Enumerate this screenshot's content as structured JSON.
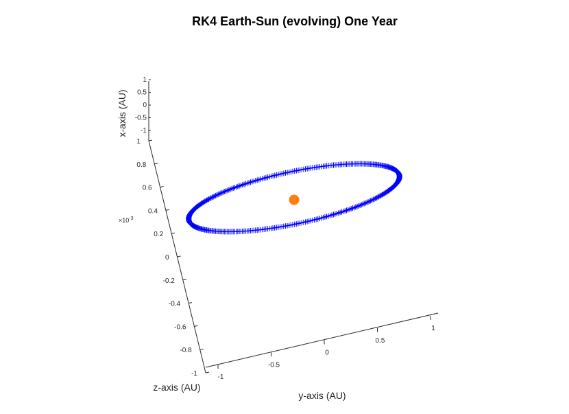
{
  "chart_data": {
    "type": "scatter",
    "title": "RK4 Earth-Sun (evolving) One Year",
    "xlabel": "y-axis (AU)",
    "ylabel": "z-axis (AU)",
    "zlabel": "x-axis (AU)",
    "z_exponent_label": "×10",
    "z_exponent_power": "-3",
    "y_ticks": [
      "-1",
      "-0.5",
      "0",
      "0.5",
      "1"
    ],
    "z_ticks": [
      "-1",
      "-0.8",
      "-0.6",
      "-0.4",
      "-0.2",
      "0",
      "0.2",
      "0.4",
      "0.6",
      "0.8",
      "1"
    ],
    "x_ticks": [
      "-1",
      "-0.5",
      "0",
      "0.5",
      "1"
    ],
    "series": [
      {
        "marker": "+",
        "color": "#0000ff",
        "semi_major_au": 1.0,
        "semi_minor_au": 1.0,
        "points_per_orbit": 365
      },
      {
        "marker": "o",
        "color": "#ff7f0e",
        "x": 0,
        "y": 0,
        "z": 0
      }
    ],
    "grid": false
  }
}
